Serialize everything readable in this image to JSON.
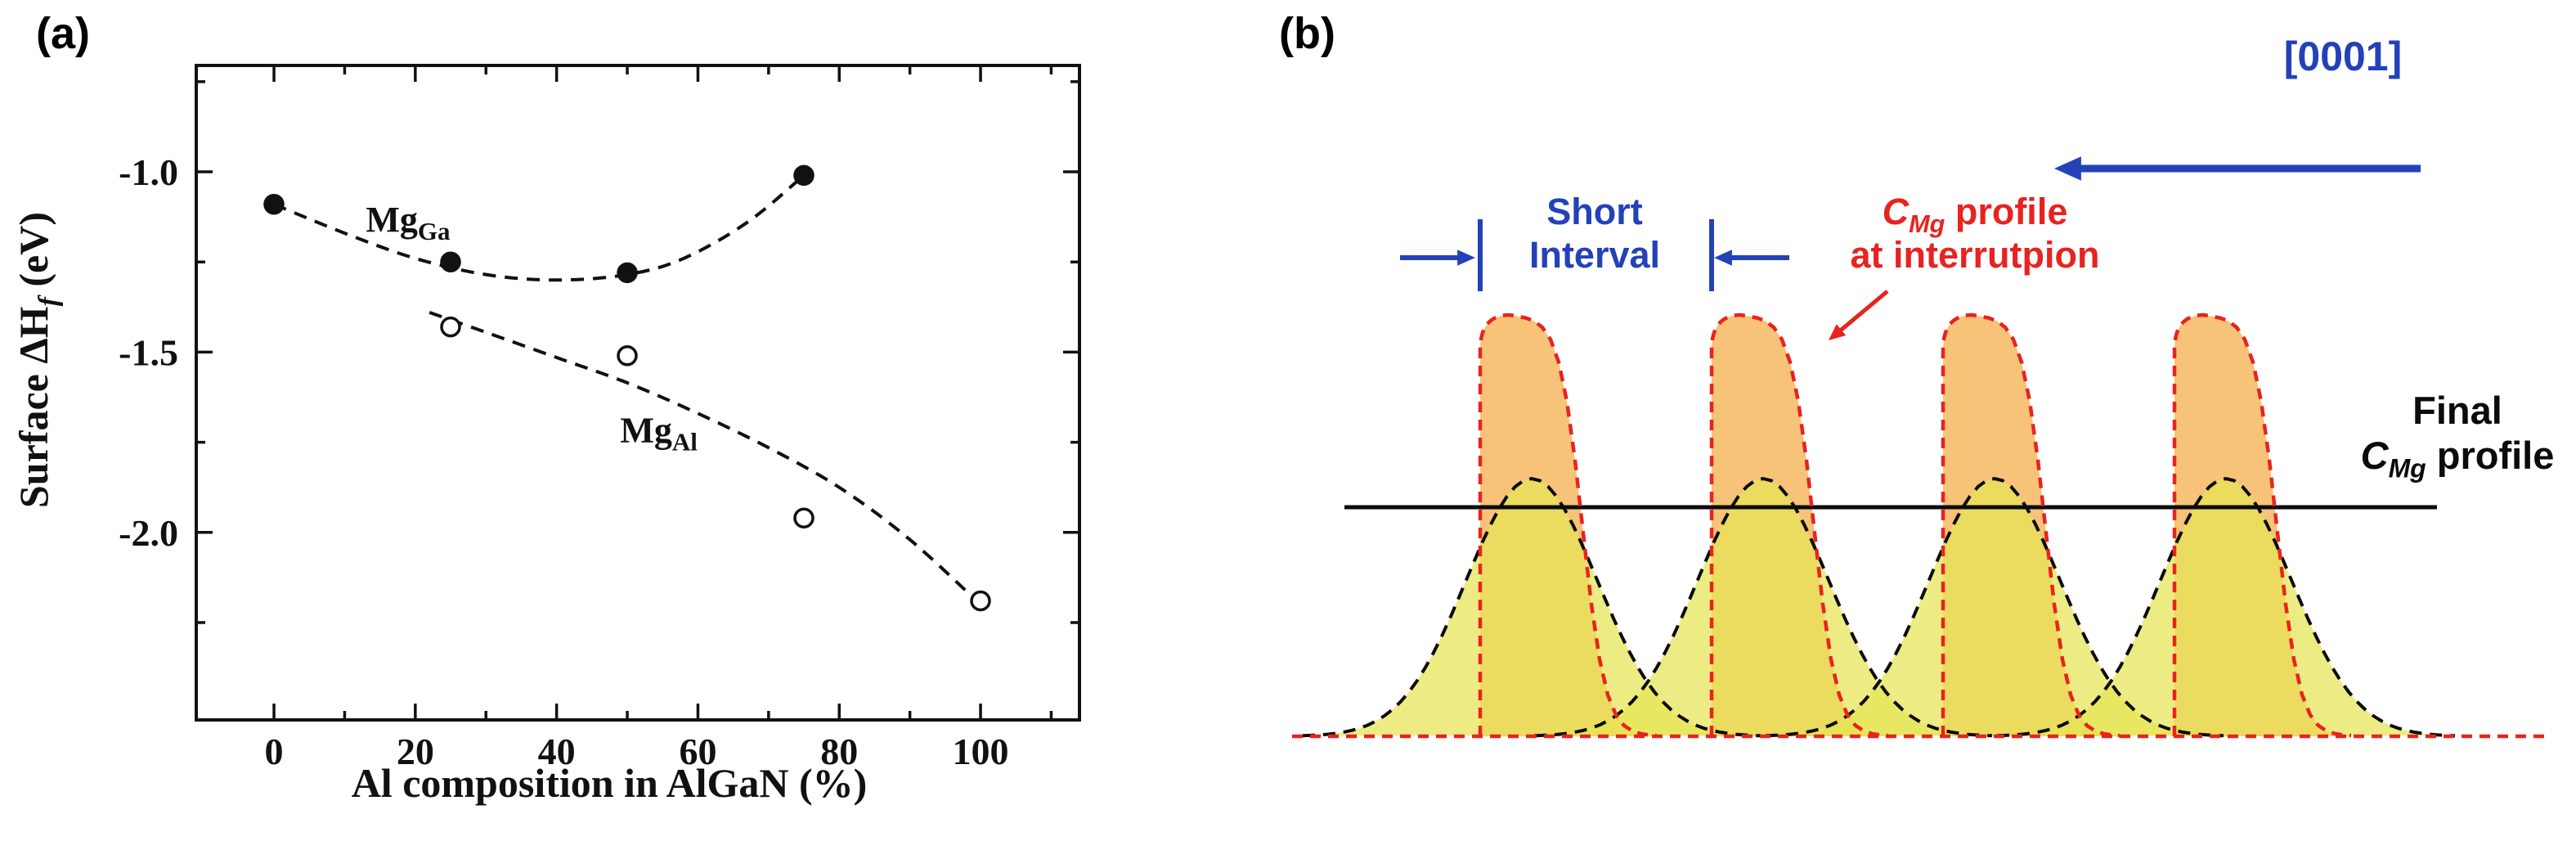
{
  "figure": {
    "panel_a": {
      "label": "(a)"
    },
    "panel_b": {
      "label": "(b)",
      "direction_label": "[0001]",
      "short_interval": {
        "line1": "Short",
        "line2": "Interval"
      },
      "cmg_interruption": {
        "line1_pre": "C",
        "line1_sub": "Mg",
        "line1_post": " profile",
        "line2": "at interrutpion"
      },
      "final_profile": {
        "line1": "Final",
        "line2_pre": "C",
        "line2_sub": "Mg",
        "line2_post": " profile"
      },
      "num_pulses": 4,
      "colors": {
        "blue": "#2342b8",
        "red": "#e8231f",
        "orange_fill": "#f5b960",
        "yellow_fill": "#e6e455",
        "ink": "#111111"
      }
    }
  },
  "chart_data": {
    "type": "scatter",
    "title": "",
    "xlabel": "Al composition in AlGaN (%)",
    "ylabel": "Surface ΔH_f (eV)",
    "ylabel_parts": {
      "pre": "Surface ΔH",
      "sub": "f",
      "post": " (eV)"
    },
    "xlim": [
      -11,
      114
    ],
    "ylim": [
      -2.52,
      -0.705
    ],
    "x_ticks": [
      0,
      20,
      40,
      60,
      80,
      100
    ],
    "x_minor_ticks": [
      10,
      30,
      50,
      70,
      90,
      110
    ],
    "y_ticks": [
      -1.0,
      -1.5,
      -2.0
    ],
    "y_tick_labels": [
      "-1.0",
      "-1.5",
      "-2.0"
    ],
    "y_minor_ticks": [
      -0.75,
      -1.25,
      -1.75,
      -2.25
    ],
    "grid": false,
    "legend": "inline-labels",
    "series": [
      {
        "name": "Mg_Ga",
        "label_main": "Mg",
        "label_sub": "Ga",
        "marker": "filled-circle",
        "x": [
          0,
          25,
          50,
          75
        ],
        "y": [
          -1.09,
          -1.25,
          -1.28,
          -1.01
        ],
        "fit_curve": [
          [
            0,
            -1.09
          ],
          [
            10,
            -1.17
          ],
          [
            20,
            -1.24
          ],
          [
            30,
            -1.285
          ],
          [
            40,
            -1.3
          ],
          [
            50,
            -1.285
          ],
          [
            58,
            -1.24
          ],
          [
            67,
            -1.14
          ],
          [
            75,
            -1.01
          ]
        ],
        "label_pos": [
          13,
          -1.165
        ]
      },
      {
        "name": "Mg_Al",
        "label_main": "Mg",
        "label_sub": "Al",
        "marker": "open-circle",
        "x": [
          25,
          50,
          75,
          100
        ],
        "y": [
          -1.43,
          -1.51,
          -1.96,
          -2.19
        ],
        "fit_curve": [
          [
            22,
            -1.39
          ],
          [
            30,
            -1.445
          ],
          [
            40,
            -1.515
          ],
          [
            50,
            -1.585
          ],
          [
            60,
            -1.67
          ],
          [
            70,
            -1.765
          ],
          [
            80,
            -1.875
          ],
          [
            90,
            -2.02
          ],
          [
            100,
            -2.2
          ]
        ],
        "label_pos": [
          49,
          -1.75
        ]
      }
    ]
  }
}
